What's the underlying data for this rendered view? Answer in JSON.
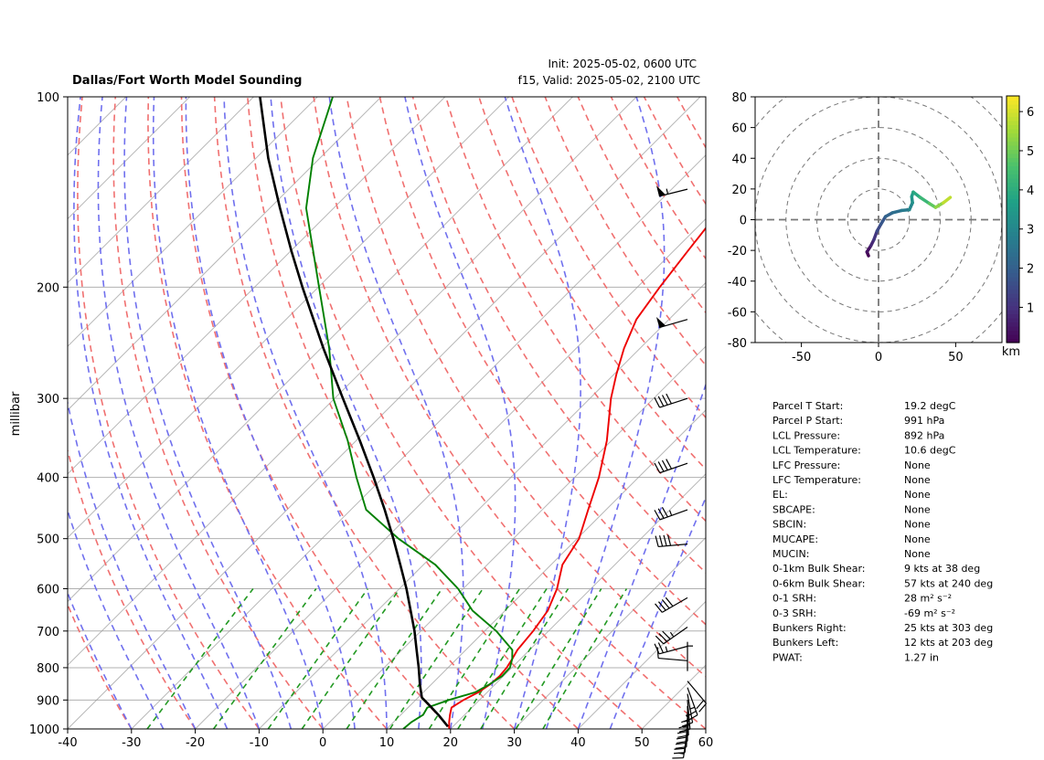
{
  "chart_data": [
    {
      "type": "line",
      "title": "Dallas/Fort Worth Model Sounding",
      "subtitle_init": "Init: 2025-05-02, 0600 UTC",
      "subtitle_valid": "f15, Valid: 2025-05-02, 2100 UTC",
      "ylabel": "millibar",
      "xlabel": "",
      "xlim": [
        -40,
        60
      ],
      "ylim": [
        1000,
        100
      ],
      "y_scale": "log",
      "skew": true,
      "grid": true,
      "x_ticks": [
        -40,
        -30,
        -20,
        -10,
        0,
        10,
        20,
        30,
        40,
        50,
        60
      ],
      "y_ticks": [
        100,
        200,
        300,
        400,
        500,
        600,
        700,
        800,
        900,
        1000
      ],
      "colors": {
        "temperature": "#ee0000",
        "dewpoint": "#008000",
        "parcel": "#000000",
        "dry_adiabats": "#f07070",
        "moist_adiabats": "#7070ee",
        "mixing_ratio": "#229922",
        "isotherms": "#999999"
      },
      "series": [
        {
          "key": "temperature",
          "pressure": [
            1000,
            975,
            950,
            925,
            900,
            875,
            850,
            825,
            800,
            775,
            750,
            700,
            650,
            600,
            550,
            500,
            450,
            400,
            350,
            300,
            275,
            250,
            225,
            200,
            175,
            150,
            125,
            100
          ],
          "values": [
            19.8,
            18.7,
            17.7,
            16.8,
            17.5,
            18.6,
            19.2,
            19.4,
            19.2,
            18.7,
            18.1,
            17.6,
            16.7,
            14.7,
            11.8,
            10.3,
            7.2,
            3.8,
            -0.7,
            -6.7,
            -9.6,
            -12.5,
            -15.1,
            -16.5,
            -17.8,
            -19.2,
            -20.6,
            -21.5
          ]
        },
        {
          "key": "dewpoint",
          "pressure": [
            1000,
            975,
            950,
            925,
            900,
            875,
            850,
            825,
            800,
            775,
            750,
            700,
            650,
            600,
            550,
            500,
            450,
            400,
            350,
            300,
            250,
            200,
            150,
            125,
            100
          ],
          "values": [
            12.6,
            12.8,
            13.5,
            13.0,
            15.2,
            18.1,
            19.1,
            19.8,
            19.7,
            18.7,
            17.3,
            11.8,
            4.9,
            -0.8,
            -8.1,
            -18.0,
            -27.6,
            -34.2,
            -41.3,
            -50.2,
            -58.7,
            -69.9,
            -84.3,
            -91.1,
            -97.6
          ]
        },
        {
          "key": "parcel",
          "pressure": [
            991,
            950,
            910,
            892,
            850,
            800,
            750,
            700,
            650,
            600,
            550,
            500,
            450,
            400,
            350,
            300,
            250,
            200,
            175,
            150,
            125,
            100
          ],
          "values": [
            19.2,
            15.9,
            12.3,
            10.6,
            8.2,
            5.4,
            2.3,
            -1.0,
            -4.8,
            -8.9,
            -13.6,
            -18.8,
            -24.7,
            -31.5,
            -39.4,
            -48.7,
            -59.6,
            -72.5,
            -80.0,
            -88.4,
            -98.1,
            -109.0
          ]
        }
      ],
      "wind_barbs": [
        {
          "pressure": 140,
          "direction": 256,
          "speed": 53
        },
        {
          "pressure": 225,
          "direction": 254,
          "speed": 48
        },
        {
          "pressure": 300,
          "direction": 252,
          "speed": 42
        },
        {
          "pressure": 380,
          "direction": 251,
          "speed": 39
        },
        {
          "pressure": 450,
          "direction": 250,
          "speed": 37
        },
        {
          "pressure": 510,
          "direction": 265,
          "speed": 42
        },
        {
          "pressure": 620,
          "direction": 240,
          "speed": 40
        },
        {
          "pressure": 690,
          "direction": 235,
          "speed": 36
        },
        {
          "pressure": 740,
          "direction": 255,
          "speed": 24
        },
        {
          "pressure": 780,
          "direction": 275,
          "speed": 10
        },
        {
          "pressure": 810,
          "direction": 0,
          "speed": 6
        },
        {
          "pressure": 840,
          "direction": 140,
          "speed": 22
        },
        {
          "pressure": 860,
          "direction": 160,
          "speed": 26
        },
        {
          "pressure": 880,
          "direction": 170,
          "speed": 27
        },
        {
          "pressure": 900,
          "direction": 175,
          "speed": 26
        },
        {
          "pressure": 920,
          "direction": 178,
          "speed": 24
        },
        {
          "pressure": 940,
          "direction": 180,
          "speed": 22
        },
        {
          "pressure": 960,
          "direction": 182,
          "speed": 20
        },
        {
          "pressure": 980,
          "direction": 185,
          "speed": 18
        },
        {
          "pressure": 1000,
          "direction": 188,
          "speed": 15
        }
      ]
    },
    {
      "type": "line",
      "chart_kind": "hodograph",
      "xlim": [
        -80,
        80
      ],
      "ylim": [
        -80,
        80
      ],
      "x_ticks": [
        -50,
        0,
        50
      ],
      "y_ticks": [
        -80,
        -60,
        -40,
        -20,
        0,
        20,
        40,
        60,
        80
      ],
      "rings": [
        20,
        40,
        60,
        80,
        100
      ],
      "colorbar": {
        "label": "km",
        "ticks": [
          1,
          2,
          3,
          4,
          5,
          6
        ],
        "range": [
          0.1,
          6.4
        ],
        "colors": [
          "#440154",
          "#46327e",
          "#365c8d",
          "#277f8e",
          "#1fa187",
          "#4ac16d",
          "#a0da39",
          "#fde725"
        ]
      },
      "series": [
        {
          "u": [
            -6.5,
            -7.5,
            -5.0,
            -3.0,
            -1.0,
            1.5,
            4.5,
            9.0,
            15.0,
            20.0,
            22.0,
            21.5,
            22.5,
            27.0,
            33.0,
            37.0,
            42.0,
            46.5
          ],
          "v": [
            -23.5,
            -21.0,
            -17.0,
            -13.0,
            -7.5,
            -3.0,
            2.0,
            4.5,
            6.0,
            6.5,
            11.0,
            15.0,
            18.0,
            14.5,
            10.5,
            8.0,
            11.0,
            14.5
          ],
          "height_km": [
            0.1,
            0.4,
            0.8,
            1.1,
            1.5,
            1.8,
            2.1,
            2.4,
            2.7,
            3.0,
            3.3,
            3.6,
            3.9,
            4.3,
            4.8,
            5.3,
            5.8,
            6.3
          ]
        }
      ]
    }
  ],
  "stats": [
    {
      "label": "Parcel T Start:",
      "value": "19.2 degC"
    },
    {
      "label": "Parcel P Start:",
      "value": "991 hPa"
    },
    {
      "label": "LCL Pressure:",
      "value": "892 hPa"
    },
    {
      "label": "LCL Temperature:",
      "value": "10.6 degC"
    },
    {
      "label": "LFC Pressure:",
      "value": "None"
    },
    {
      "label": "LFC Temperature:",
      "value": "None"
    },
    {
      "label": "EL:",
      "value": "None"
    },
    {
      "label": "SBCAPE:",
      "value": "None"
    },
    {
      "label": "SBCIN:",
      "value": "None"
    },
    {
      "label": "MUCAPE:",
      "value": "None"
    },
    {
      "label": "MUCIN:",
      "value": "None"
    },
    {
      "label": "0-1km Bulk Shear:",
      "value": "9 kts at 38 deg"
    },
    {
      "label": "0-6km Bulk Shear:",
      "value": "57 kts at 240 deg"
    },
    {
      "label": "0-1 SRH:",
      "value": "28 m² s⁻²"
    },
    {
      "label": "0-3 SRH:",
      "value": "-69 m² s⁻²"
    },
    {
      "label": "Bunkers Right:",
      "value": "25 kts at 303 deg"
    },
    {
      "label": "Bunkers Left:",
      "value": "12 kts at 203 deg"
    },
    {
      "label": "PWAT:",
      "value": "1.27 in"
    }
  ]
}
